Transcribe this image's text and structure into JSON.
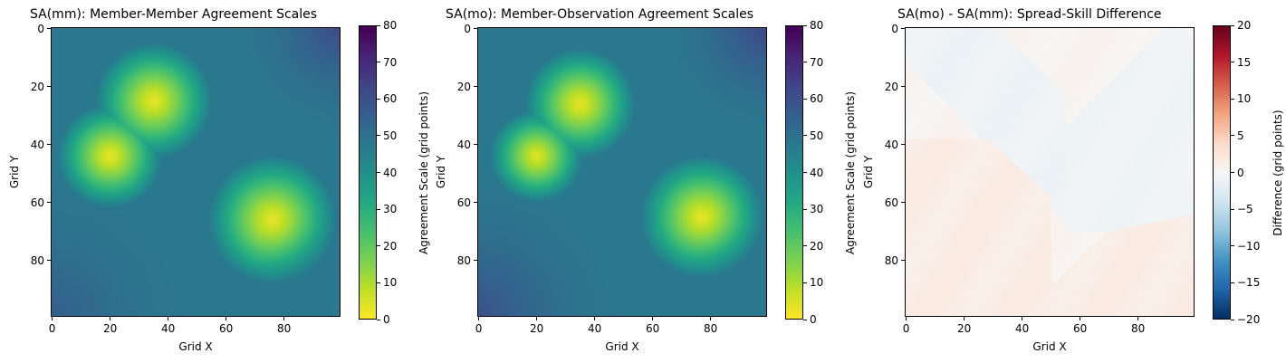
{
  "chart_data": [
    {
      "type": "heatmap",
      "title": "SA(mm): Member-Member Agreement Scales",
      "xlabel": "Grid X",
      "ylabel": "Grid Y",
      "xlim": [
        0,
        99
      ],
      "ylim": [
        99,
        0
      ],
      "x_ticks": [
        0,
        20,
        40,
        60,
        80
      ],
      "y_ticks": [
        0,
        20,
        40,
        60,
        80
      ],
      "colormap": "viridis_r",
      "colorbar": {
        "label": "Agreement Scale (grid points)",
        "range": [
          0,
          80
        ],
        "ticks": [
          0,
          10,
          20,
          30,
          40,
          50,
          60,
          70,
          80
        ]
      },
      "field": {
        "base": 48,
        "minima": [
          {
            "x": 35,
            "y": 25,
            "value": 3,
            "radius": 20
          },
          {
            "x": 20,
            "y": 44,
            "value": 3,
            "radius": 18
          },
          {
            "x": 76,
            "y": 66,
            "value": 3,
            "radius": 22
          }
        ],
        "maxima": [
          {
            "x": 99,
            "y": 0,
            "value": 62,
            "radius": 25
          },
          {
            "x": 0,
            "y": 99,
            "value": 56,
            "radius": 35
          },
          {
            "x": 99,
            "y": 99,
            "value": 48,
            "radius": 25
          }
        ]
      }
    },
    {
      "type": "heatmap",
      "title": "SA(mo): Member-Observation Agreement Scales",
      "xlabel": "Grid X",
      "ylabel": "Grid Y",
      "xlim": [
        0,
        99
      ],
      "ylim": [
        99,
        0
      ],
      "x_ticks": [
        0,
        20,
        40,
        60,
        80
      ],
      "y_ticks": [
        0,
        20,
        40,
        60,
        80
      ],
      "colormap": "viridis_r",
      "colorbar": {
        "label": "Agreement Scale (grid points)",
        "range": [
          0,
          80
        ],
        "ticks": [
          0,
          10,
          20,
          30,
          40,
          50,
          60,
          70,
          80
        ]
      },
      "field": {
        "base": 48,
        "minima": [
          {
            "x": 35,
            "y": 26,
            "value": 3,
            "radius": 19
          },
          {
            "x": 20,
            "y": 44,
            "value": 4,
            "radius": 16
          },
          {
            "x": 77,
            "y": 65,
            "value": 3,
            "radius": 21
          }
        ],
        "maxima": [
          {
            "x": 99,
            "y": 0,
            "value": 63,
            "radius": 25
          },
          {
            "x": 0,
            "y": 99,
            "value": 60,
            "radius": 35
          },
          {
            "x": 99,
            "y": 99,
            "value": 48,
            "radius": 25
          }
        ]
      }
    },
    {
      "type": "heatmap",
      "title": "SA(mo) - SA(mm): Spread-Skill Difference",
      "xlabel": "Grid X",
      "ylabel": "Grid Y",
      "xlim": [
        0,
        99
      ],
      "ylim": [
        99,
        0
      ],
      "x_ticks": [
        0,
        20,
        40,
        60,
        80
      ],
      "y_ticks": [
        0,
        20,
        40,
        60,
        80
      ],
      "colormap": "RdBu_r",
      "colorbar": {
        "label": "Difference (grid points)",
        "range": [
          -20,
          20
        ],
        "ticks": [
          -20,
          -15,
          -10,
          -5,
          0,
          5,
          10,
          15,
          20
        ]
      },
      "field": {
        "regions": [
          {
            "name": "upper-left band",
            "value": -1.0
          },
          {
            "name": "top region",
            "value": 0.5
          },
          {
            "name": "right region",
            "value": -0.8
          },
          {
            "name": "lower-left region",
            "value": 1.5
          },
          {
            "name": "bottom-right region",
            "value": 1.5
          }
        ]
      }
    }
  ]
}
